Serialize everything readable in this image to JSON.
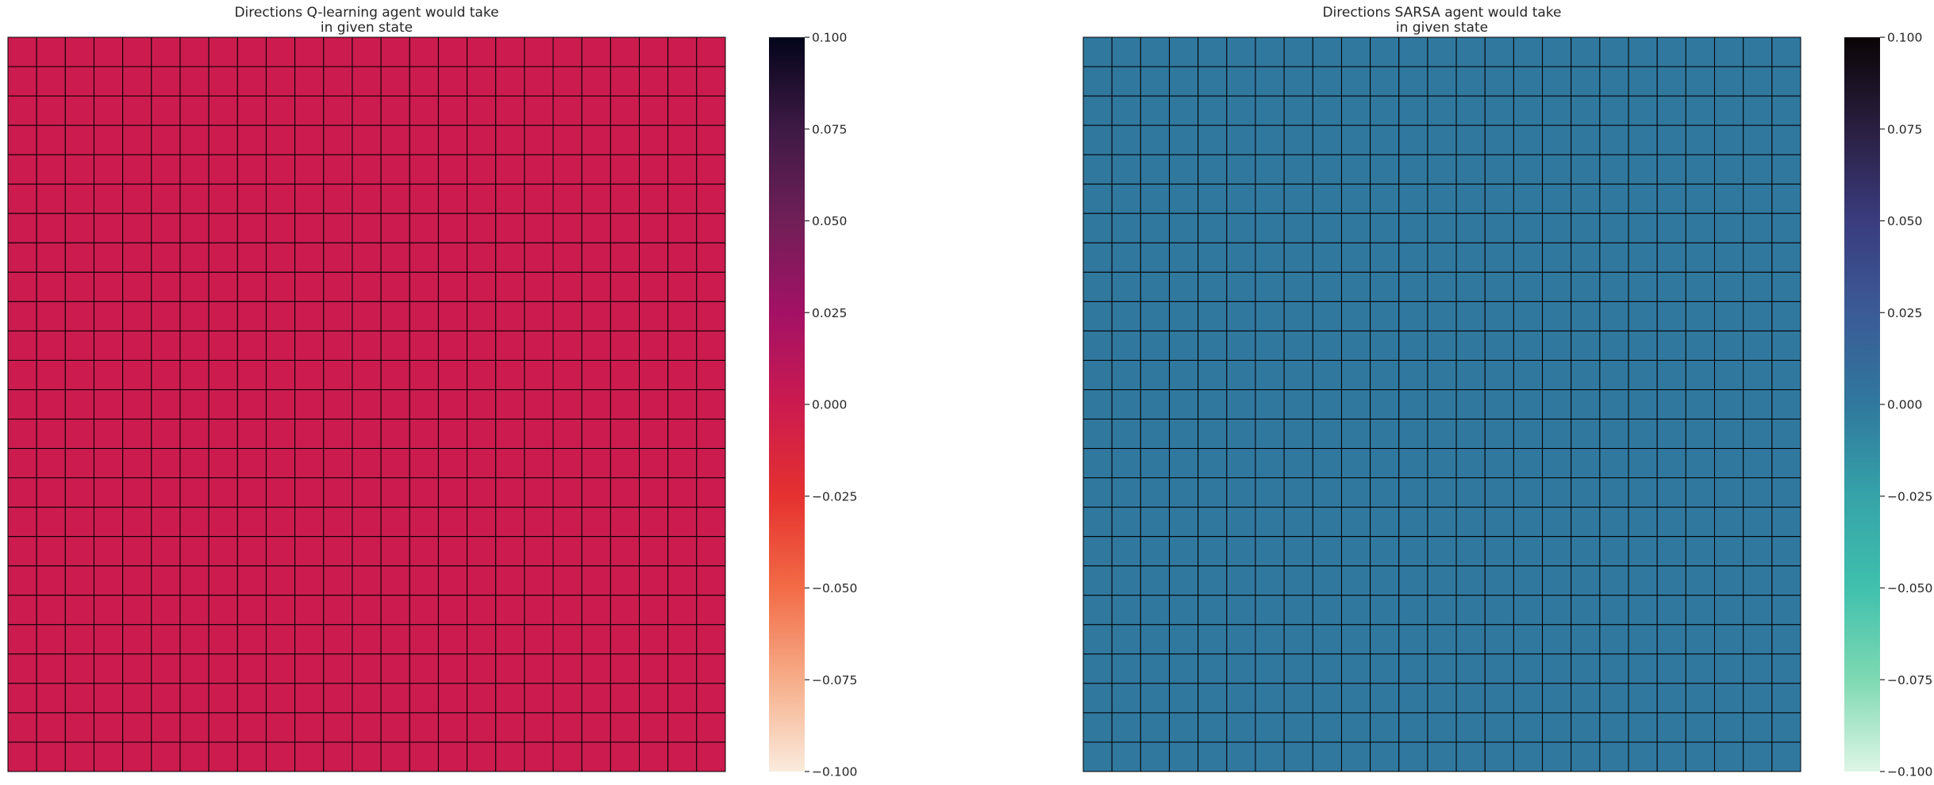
{
  "chart_data": [
    {
      "type": "heatmap",
      "title_line1": "Directions Q-learning agent would take",
      "title_line2": "in given state",
      "rows": 25,
      "cols": 25,
      "cell_value": 0.0,
      "cell_color": "#cb1b4f",
      "grid_line_color": "#000000",
      "colorbar": {
        "vmin": -0.1,
        "vmax": 0.1,
        "ticks": [
          "-0.100",
          "-0.075",
          "-0.050",
          "-0.025",
          "0.000",
          "0.025",
          "0.050",
          "0.075",
          "0.100"
        ],
        "colormap": "rocket_r",
        "stops": [
          "#faebdd",
          "#f6ad89",
          "#f26b46",
          "#e5312f",
          "#cb1b4f",
          "#a31165",
          "#701f57",
          "#3e1a45",
          "#03051a"
        ]
      },
      "xlabel": "",
      "ylabel": ""
    },
    {
      "type": "heatmap",
      "title_line1": "Directions SARSA agent would take",
      "title_line2": "in given state",
      "rows": 25,
      "cols": 25,
      "cell_value": 0.0,
      "cell_color": "#30789e",
      "grid_line_color": "#000000",
      "colorbar": {
        "vmin": -0.1,
        "vmax": 0.1,
        "ticks": [
          "-0.100",
          "-0.075",
          "-0.050",
          "-0.025",
          "0.000",
          "0.025",
          "0.050",
          "0.075",
          "0.100"
        ],
        "colormap": "mako_r",
        "stops": [
          "#def5e5",
          "#7ed9b2",
          "#40c0ad",
          "#35a3a8",
          "#30789e",
          "#3b5b96",
          "#3a3c7e",
          "#2a1f41",
          "#0b0405"
        ]
      },
      "xlabel": "",
      "ylabel": ""
    }
  ]
}
